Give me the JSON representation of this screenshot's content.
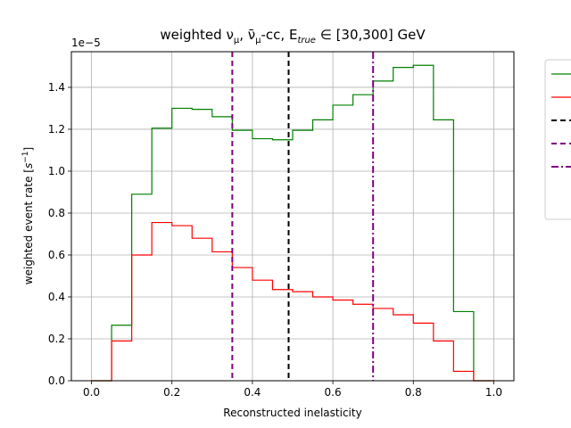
{
  "chart_data": {
    "type": "step-histogram",
    "title": "weighted ν_μ, ν̄_μ-cc, E_true ∈ [30,300] GeV",
    "title_parts": {
      "pre": "weighted ",
      "nu": "ν",
      "nu_sub": "μ",
      "sep": ", ",
      "nubar": "ν̄",
      "nubar_sub": "μ",
      "cc": "-cc, E",
      "e_sub": "true",
      "range": " ∈  [30,300] GeV"
    },
    "xlabel": "Reconstructed inelasticity",
    "ylabel": "weighted event rate [s⁻¹]",
    "ylabel_parts": {
      "pre": "weighted event rate [",
      "base": "s",
      "sup": "−1",
      "post": "]"
    },
    "y_offset_text": "1e−5",
    "scale_factor": 1e-05,
    "xlim": [
      -0.05,
      1.05
    ],
    "ylim": [
      0,
      1.57
    ],
    "grid": true,
    "xticks": [
      0.0,
      0.2,
      0.4,
      0.6,
      0.8,
      1.0
    ],
    "xtick_labels": [
      "0.0",
      "0.2",
      "0.4",
      "0.6",
      "0.8",
      "1.0"
    ],
    "yticks": [
      0.0,
      0.2,
      0.4,
      0.6,
      0.8,
      1.0,
      1.2,
      1.4
    ],
    "ytick_labels": [
      "0.0",
      "0.2",
      "0.4",
      "0.6",
      "0.8",
      "1.0",
      "1.2",
      "1.4"
    ],
    "bin_edges": [
      0.0,
      0.05,
      0.1,
      0.15,
      0.2,
      0.25,
      0.3,
      0.35,
      0.4,
      0.45,
      0.5,
      0.55,
      0.6,
      0.65,
      0.7,
      0.75,
      0.8,
      0.85,
      0.9,
      0.95,
      1.0
    ],
    "series": [
      {
        "color": "#008000",
        "values": [
          0.0,
          0.265,
          0.89,
          1.205,
          1.3,
          1.295,
          1.26,
          1.195,
          1.155,
          1.15,
          1.195,
          1.245,
          1.315,
          1.365,
          1.43,
          1.495,
          1.505,
          1.245,
          0.33,
          0.0
        ]
      },
      {
        "color": "#ff0000",
        "values": [
          0.0,
          0.19,
          0.6,
          0.755,
          0.74,
          0.68,
          0.615,
          0.54,
          0.48,
          0.435,
          0.425,
          0.4,
          0.385,
          0.365,
          0.345,
          0.315,
          0.275,
          0.19,
          0.045,
          0.0
        ]
      }
    ],
    "vlines": [
      {
        "x": 0.35,
        "color": "#800080",
        "style": "dashed"
      },
      {
        "x": 0.49,
        "color": "#000000",
        "style": "dashed"
      },
      {
        "x": 0.7,
        "color": "#800080",
        "style": "dashdot"
      }
    ],
    "legend": {
      "placement": "outside-right-top",
      "entries": [
        {
          "color": "#008000",
          "style": "solid"
        },
        {
          "color": "#ff0000",
          "style": "solid"
        },
        {
          "color": "#000000",
          "style": "dashed"
        },
        {
          "color": "#800080",
          "style": "dashed"
        },
        {
          "color": "#800080",
          "style": "dashdot"
        }
      ]
    }
  }
}
